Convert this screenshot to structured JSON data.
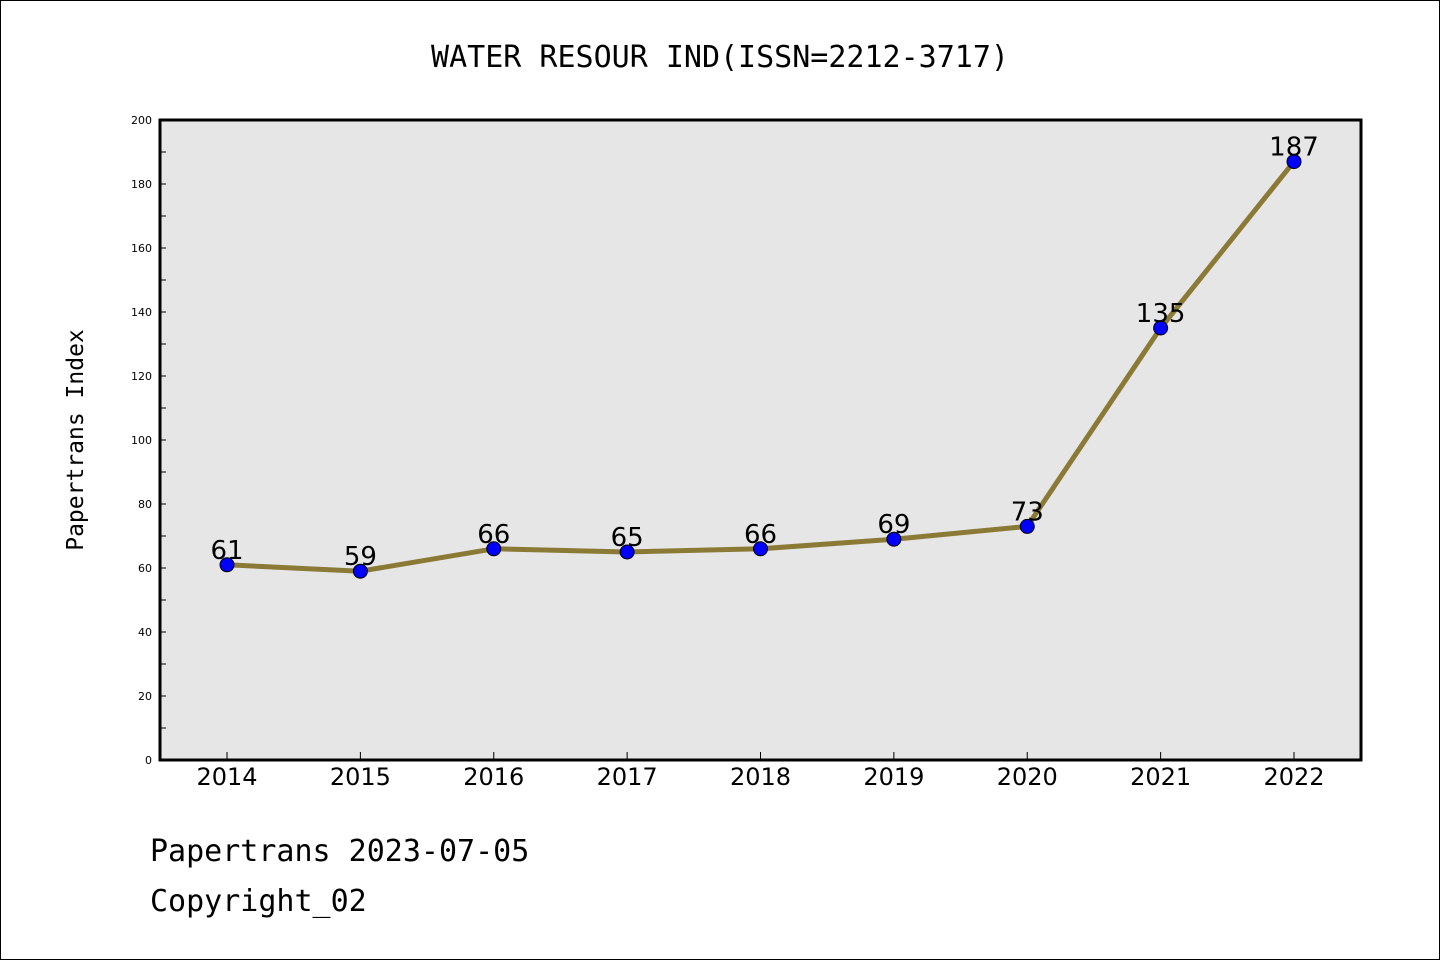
{
  "chart_data": {
    "type": "line",
    "title": "WATER RESOUR IND(ISSN=2212-3717)",
    "xlabel": "",
    "ylabel": "Papertrans Index",
    "categories": [
      "2014",
      "2015",
      "2016",
      "2017",
      "2018",
      "2019",
      "2020",
      "2021",
      "2022"
    ],
    "series": [
      {
        "values": [
          61,
          59,
          66,
          65,
          66,
          69,
          73,
          135,
          187
        ]
      }
    ],
    "ylim": [
      0,
      200
    ],
    "yticks": [
      0,
      20,
      40,
      60,
      80,
      100,
      120,
      140,
      160,
      180,
      200
    ],
    "data_labels": true,
    "grid": false,
    "colors": {
      "line": "#8b7a35",
      "marker": "#0000ff",
      "plot_background": "#e6e6e6"
    }
  },
  "footer": {
    "date_line": "Papertrans 2023-07-05",
    "copyright": "Copyright_02"
  }
}
